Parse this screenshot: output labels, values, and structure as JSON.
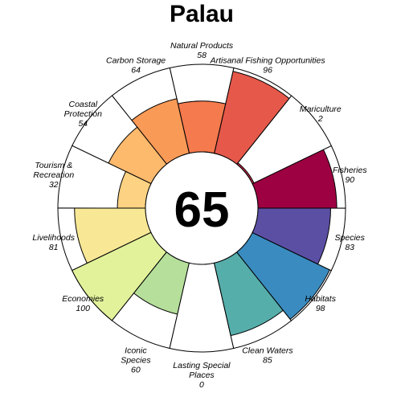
{
  "chart_data": {
    "type": "flower",
    "title": "Palau",
    "center_score": "65",
    "value_range": [
      0,
      100
    ],
    "petals": [
      {
        "name": "Fisheries",
        "value": 90,
        "color": "#9E0142",
        "label_lines": [
          "Fisheries"
        ],
        "value_text": "90"
      },
      {
        "name": "Mariculture",
        "value": 2,
        "color": "#C7294A",
        "label_lines": [
          "Mariculture"
        ],
        "value_text": "2"
      },
      {
        "name": "Artisanal Fishing Opportunities",
        "value": 96,
        "color": "#E5584A",
        "label_lines": [
          "Artisanal Fishing Opportunities"
        ],
        "value_text": "96"
      },
      {
        "name": "Natural Products",
        "value": 58,
        "color": "#F57A4D",
        "label_lines": [
          "Natural Products"
        ],
        "value_text": "58"
      },
      {
        "name": "Carbon Storage",
        "value": 64,
        "color": "#FA9A57",
        "label_lines": [
          "Carbon Storage"
        ],
        "value_text": "64"
      },
      {
        "name": "Coastal Protection",
        "value": 54,
        "color": "#FDB96C",
        "label_lines": [
          "Coastal",
          "Protection"
        ],
        "value_text": "54"
      },
      {
        "name": "Tourism & Recreation",
        "value": 32,
        "color": "#FDD282",
        "label_lines": [
          "Tourism &",
          "Recreation"
        ],
        "value_text": "32"
      },
      {
        "name": "Livelihoods",
        "value": 81,
        "color": "#F8E895",
        "label_lines": [
          "Livelihoods"
        ],
        "value_text": "81"
      },
      {
        "name": "Economies",
        "value": 100,
        "color": "#E2F29B",
        "label_lines": [
          "Economies"
        ],
        "value_text": "100"
      },
      {
        "name": "Iconic Species",
        "value": 60,
        "color": "#B5DF9B",
        "label_lines": [
          "Iconic",
          "Species"
        ],
        "value_text": "60"
      },
      {
        "name": "Lasting Special Places",
        "value": 0,
        "color": "#88CFA4",
        "label_lines": [
          "Lasting Special",
          "Places"
        ],
        "value_text": "0"
      },
      {
        "name": "Clean Waters",
        "value": 85,
        "color": "#56AEAB",
        "label_lines": [
          "Clean Waters"
        ],
        "value_text": "85"
      },
      {
        "name": "Habitats",
        "value": 98,
        "color": "#3A8BBF",
        "label_lines": [
          "Habitats"
        ],
        "value_text": "98"
      },
      {
        "name": "Species",
        "value": 83,
        "color": "#5B4FA4",
        "label_lines": [
          "Species"
        ],
        "value_text": "83"
      }
    ]
  }
}
